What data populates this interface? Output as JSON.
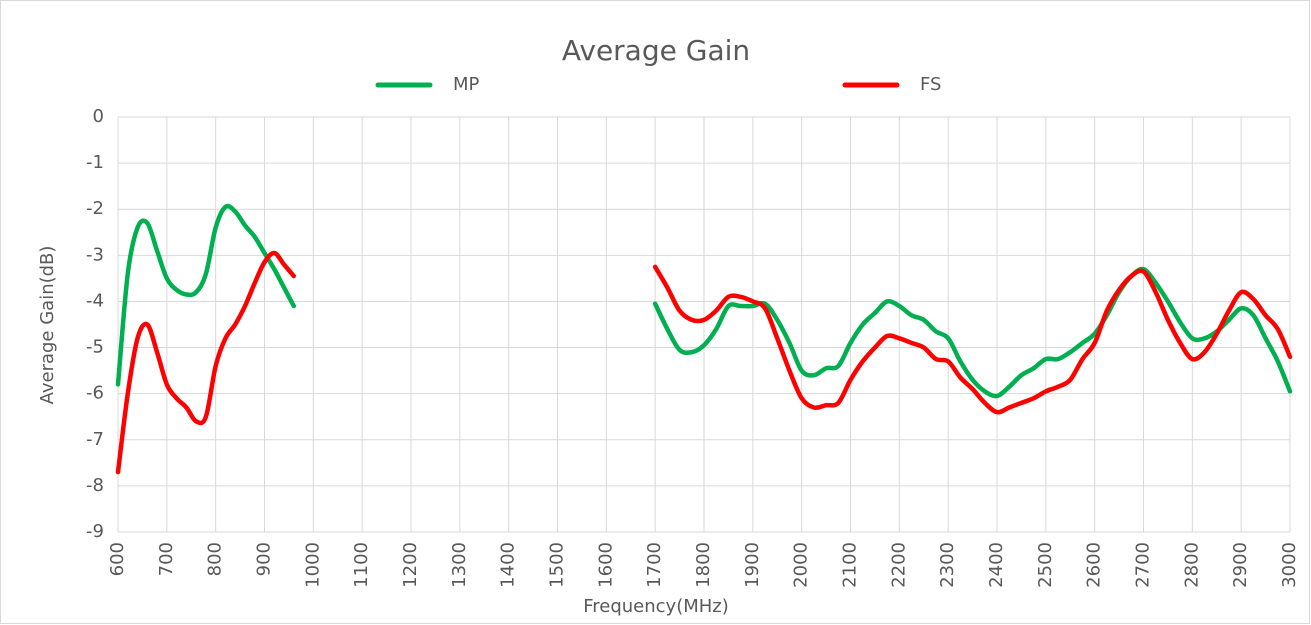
{
  "chart_data": {
    "type": "line",
    "title": "Average Gain",
    "x_label": "Frequency(MHz)",
    "y_label": "Average Gain(dB)",
    "x": [
      600,
      620,
      640,
      660,
      680,
      700,
      720,
      740,
      760,
      780,
      800,
      820,
      840,
      860,
      880,
      900,
      920,
      940,
      960,
      1300,
      1700,
      1725,
      1750,
      1775,
      1800,
      1825,
      1850,
      1875,
      1900,
      1925,
      1950,
      1975,
      2000,
      2025,
      2050,
      2075,
      2100,
      2125,
      2150,
      2175,
      2200,
      2225,
      2250,
      2275,
      2300,
      2325,
      2350,
      2375,
      2400,
      2425,
      2450,
      2475,
      2500,
      2525,
      2550,
      2575,
      2600,
      2625,
      2650,
      2675,
      2700,
      2725,
      2750,
      2775,
      2800,
      2825,
      2850,
      2875,
      2900,
      2925,
      2950,
      2975,
      3000
    ],
    "series": [
      {
        "name": "MP",
        "color": "#00b050",
        "values": [
          -5.8,
          -3.4,
          -2.4,
          -2.3,
          -2.9,
          -3.5,
          -3.75,
          -3.85,
          -3.8,
          -3.4,
          -2.4,
          -1.95,
          -2.05,
          -2.35,
          -2.6,
          -2.95,
          -3.3,
          -3.7,
          -4.1,
          null,
          -4.05,
          -4.6,
          -5.05,
          -5.1,
          -4.95,
          -4.6,
          -4.1,
          -4.1,
          -4.1,
          -4.05,
          -4.4,
          -4.9,
          -5.5,
          -5.6,
          -5.45,
          -5.4,
          -4.9,
          -4.5,
          -4.25,
          -4.0,
          -4.1,
          -4.3,
          -4.4,
          -4.65,
          -4.8,
          -5.3,
          -5.7,
          -5.95,
          -6.05,
          -5.85,
          -5.6,
          -5.45,
          -5.25,
          -5.25,
          -5.1,
          -4.9,
          -4.7,
          -4.3,
          -3.8,
          -3.45,
          -3.3,
          -3.6,
          -4.0,
          -4.45,
          -4.8,
          -4.8,
          -4.65,
          -4.4,
          -4.15,
          -4.3,
          -4.8,
          -5.3,
          -5.95
        ]
      },
      {
        "name": "FS",
        "color": "#ff0000",
        "values": [
          -7.7,
          -6.0,
          -4.8,
          -4.5,
          -5.1,
          -5.8,
          -6.1,
          -6.3,
          -6.6,
          -6.5,
          -5.4,
          -4.8,
          -4.5,
          -4.1,
          -3.6,
          -3.15,
          -2.95,
          -3.2,
          -3.45,
          null,
          -3.25,
          -3.7,
          -4.2,
          -4.4,
          -4.4,
          -4.2,
          -3.9,
          -3.9,
          -4.0,
          -4.15,
          -4.8,
          -5.5,
          -6.1,
          -6.3,
          -6.25,
          -6.2,
          -5.7,
          -5.3,
          -5.0,
          -4.75,
          -4.8,
          -4.9,
          -5.0,
          -5.25,
          -5.3,
          -5.65,
          -5.9,
          -6.2,
          -6.4,
          -6.3,
          -6.2,
          -6.1,
          -5.95,
          -5.85,
          -5.7,
          -5.25,
          -4.9,
          -4.2,
          -3.75,
          -3.45,
          -3.35,
          -3.8,
          -4.4,
          -4.9,
          -5.25,
          -5.1,
          -4.7,
          -4.2,
          -3.8,
          -3.95,
          -4.3,
          -4.6,
          -5.2
        ]
      }
    ],
    "xlim": [
      600,
      3000
    ],
    "xticks": [
      600,
      700,
      800,
      900,
      1000,
      1100,
      1200,
      1300,
      1400,
      1500,
      1600,
      1700,
      1800,
      1900,
      2000,
      2100,
      2200,
      2300,
      2400,
      2500,
      2600,
      2700,
      2800,
      2900,
      3000
    ],
    "ylim": [
      -9,
      0
    ],
    "yticks": [
      0,
      -1,
      -2,
      -3,
      -4,
      -5,
      -6,
      -7,
      -8,
      -9
    ],
    "grid": true,
    "legend": "top"
  }
}
